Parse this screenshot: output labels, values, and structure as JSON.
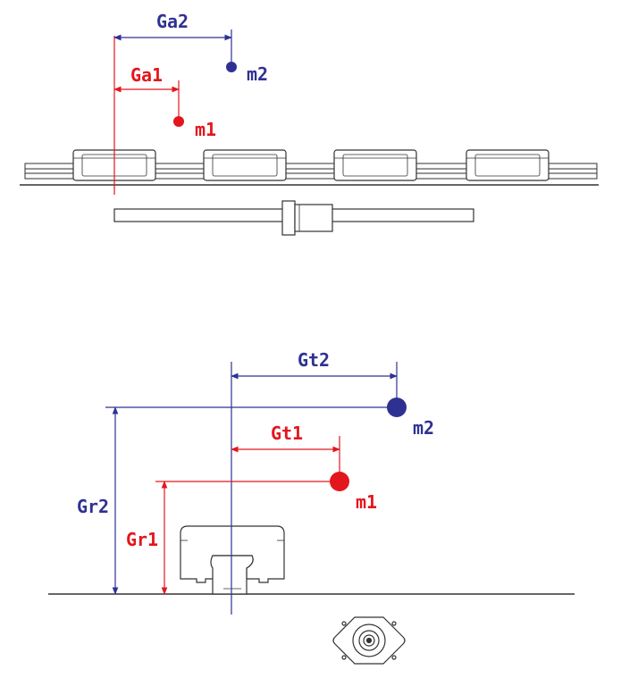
{
  "colors": {
    "blue": "#2f3192",
    "red": "#e3161d",
    "outline": "#333333",
    "guide": "#555555"
  },
  "top_view": {
    "labels": {
      "ga1": "Ga1",
      "ga2": "Ga2",
      "m1": "m1",
      "m2": "m2"
    }
  },
  "front_view": {
    "labels": {
      "gt1": "Gt1",
      "gt2": "Gt2",
      "gr1": "Gr1",
      "gr2": "Gr2",
      "m1": "m1",
      "m2": "m2"
    }
  }
}
